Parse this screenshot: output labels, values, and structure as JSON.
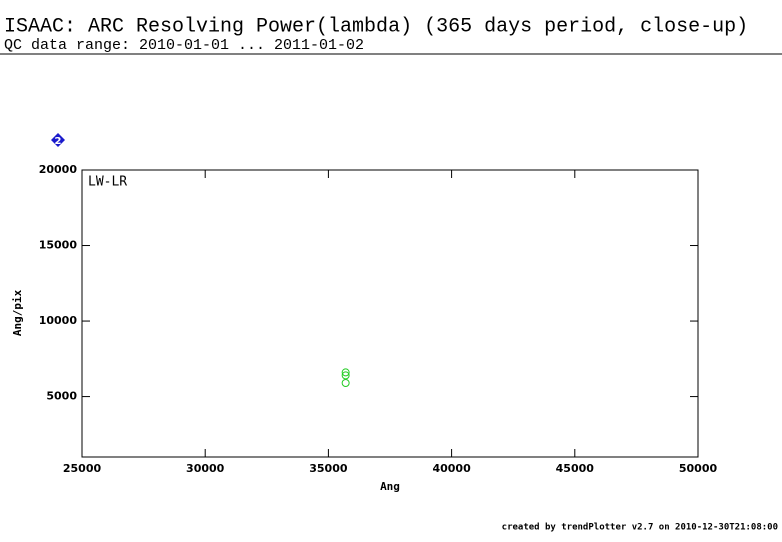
{
  "chart_data": {
    "type": "scatter",
    "title": "ISAAC: ARC Resolving Power(lambda) (365 days period, close-up)",
    "subtitle": "QC data range: 2010-01-01 ... 2011-01-02",
    "marker_label": "2",
    "series": [
      {
        "name": "LW-LR",
        "color": "#22cc22",
        "x": [
          35700,
          35700,
          35700
        ],
        "values": [
          6600,
          6400,
          5900
        ]
      }
    ],
    "xlabel": "Ang",
    "ylabel": "Ang/pix",
    "xlim": [
      25000,
      50000
    ],
    "xticks": [
      25000,
      30000,
      35000,
      40000,
      45000,
      50000
    ],
    "ylim": [
      1000,
      20000
    ],
    "yticks": [
      5000,
      10000,
      15000,
      20000
    ],
    "footer": "created by trendPlotter v2.7 on 2010-12-30T21:08:00"
  }
}
